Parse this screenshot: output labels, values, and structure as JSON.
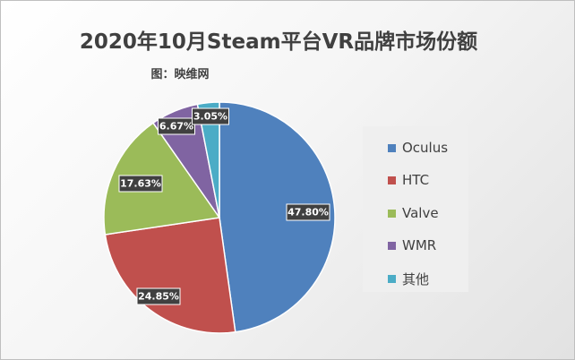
{
  "chart": {
    "title": "2020年10月Steam平台VR品牌市场份额",
    "subtitle": "图：映维网"
  },
  "chart_data": {
    "type": "pie",
    "title": "2020年10月Steam平台VR品牌市场份额",
    "subtitle": "图：映维网",
    "legend_position": "right",
    "categories": [
      "Oculus",
      "HTC",
      "Valve",
      "WMR",
      "其他"
    ],
    "values": [
      47.8,
      24.85,
      17.63,
      6.67,
      3.05
    ],
    "labels": [
      "47.80%",
      "24.85%",
      "17.63%",
      "6.67%",
      "3.05%"
    ],
    "colors": [
      "#4f81bd",
      "#c0504d",
      "#9bbb59",
      "#8064a2",
      "#4bacc6"
    ],
    "start": "12 o'clock",
    "direction": "clockwise"
  }
}
